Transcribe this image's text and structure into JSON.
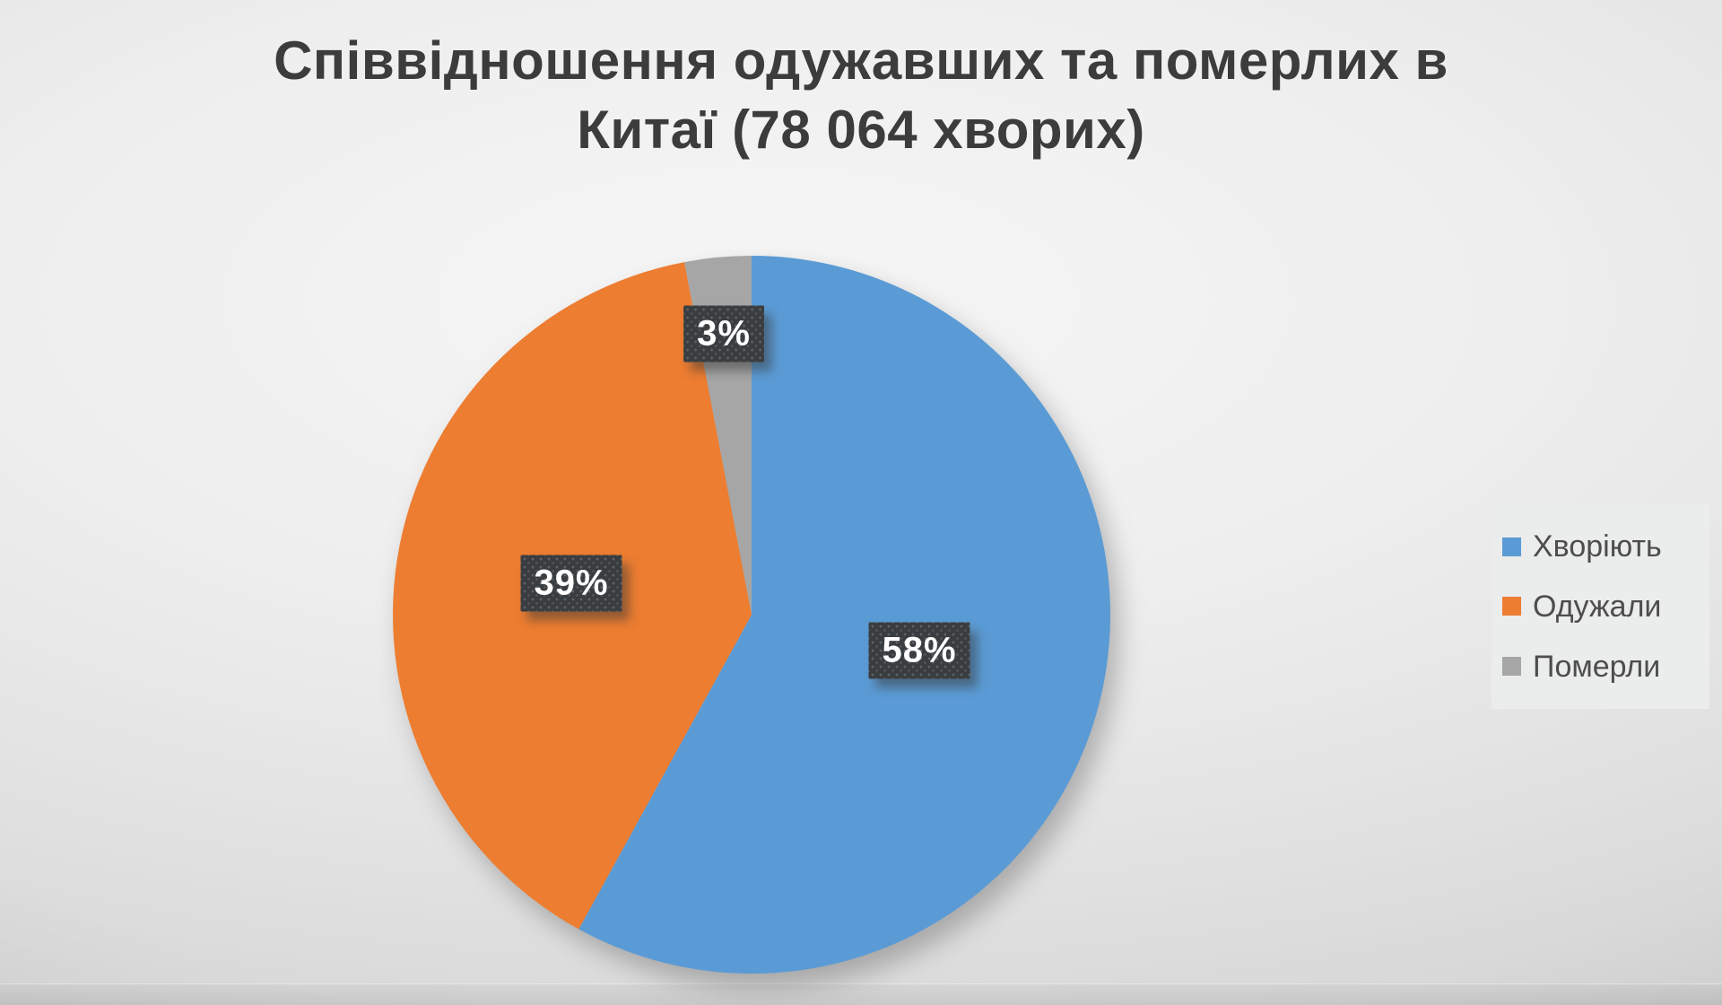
{
  "title": {
    "line1": "Співвідношення одужавших та померлих в",
    "line2": "Китаї (78 064 хворих)"
  },
  "chart_data": {
    "type": "pie",
    "title": "Співвідношення одужавших та померлих в Китаї (78 064 хворих)",
    "slices": [
      {
        "name": "Хворіють",
        "value": 58,
        "label": "58%",
        "color": "#5B9BD5"
      },
      {
        "name": "Одужали",
        "value": 39,
        "label": "39%",
        "color": "#ED7D31"
      },
      {
        "name": "Померли",
        "value": 3,
        "label": "3%",
        "color": "#A6A6A6"
      }
    ],
    "start_angle_deg": 0,
    "direction": "clockwise",
    "legend_position": "right",
    "data_labels": "percent"
  },
  "colors": {
    "title_text": "#3c3c3c",
    "label_box_bg": "#3a3d40",
    "label_text": "#ffffff",
    "legend_bg": "#ebecec",
    "legend_text": "#4d4d4d"
  }
}
